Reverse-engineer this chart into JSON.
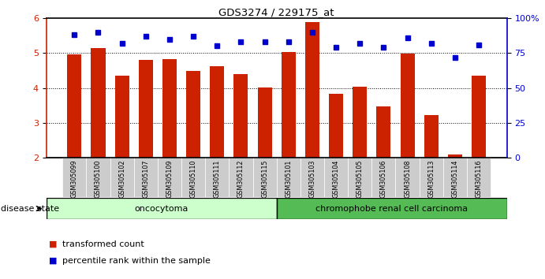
{
  "title": "GDS3274 / 229175_at",
  "samples": [
    "GSM305099",
    "GSM305100",
    "GSM305102",
    "GSM305107",
    "GSM305109",
    "GSM305110",
    "GSM305111",
    "GSM305112",
    "GSM305115",
    "GSM305101",
    "GSM305103",
    "GSM305104",
    "GSM305105",
    "GSM305106",
    "GSM305108",
    "GSM305113",
    "GSM305114",
    "GSM305116"
  ],
  "transformed_count": [
    4.95,
    5.15,
    4.35,
    4.8,
    4.82,
    4.48,
    4.62,
    4.4,
    4.02,
    5.02,
    5.88,
    3.82,
    4.03,
    3.46,
    4.98,
    3.22,
    2.1,
    4.35
  ],
  "percentile_rank": [
    88,
    90,
    82,
    87,
    85,
    87,
    80,
    83,
    83,
    83,
    90,
    79,
    82,
    79,
    86,
    82,
    72,
    81
  ],
  "oncocytoma_count": 9,
  "chromophobe_count": 9,
  "bar_color": "#cc2200",
  "dot_color": "#0000cc",
  "oncocytoma_light": "#ccffcc",
  "chromophobe_dark": "#55bb55",
  "group_label_onco": "oncocytoma",
  "group_label_chrom": "chromophobe renal cell carcinoma",
  "ylim_left": [
    2,
    6
  ],
  "ylim_right": [
    0,
    100
  ],
  "yticks_left": [
    2,
    3,
    4,
    5,
    6
  ],
  "yticks_right": [
    0,
    25,
    50,
    75,
    100
  ],
  "ytick_labels_right": [
    "0",
    "25",
    "50",
    "75",
    "100%"
  ],
  "legend_red": "transformed count",
  "legend_blue": "percentile rank within the sample",
  "disease_state_label": "disease state",
  "background_color": "#ffffff",
  "tick_label_bg": "#cccccc"
}
